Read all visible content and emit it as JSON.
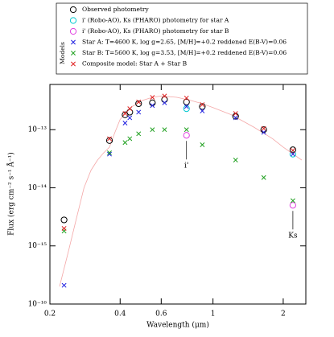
{
  "chart_data": {
    "type": "sed",
    "xlabel": "Wavelength (μm)",
    "ylabel": "Flux (erg cm⁻² s⁻¹ Å⁻¹)",
    "log_x": true,
    "log_y": true,
    "xlim": [
      0.2,
      2.5
    ],
    "ylim": [
      1e-16,
      6e-13
    ],
    "xticks": [
      0.2,
      0.4,
      0.6,
      1,
      2
    ],
    "yticks": [
      {
        "value": 1e-16,
        "label": "10⁻¹⁶"
      },
      {
        "value": 1e-15,
        "label": "10⁻¹⁵"
      },
      {
        "value": 1e-14,
        "label": "10⁻¹⁴"
      },
      {
        "value": 1e-13,
        "label": "10⁻¹³"
      }
    ],
    "x": [
      0.23,
      0.36,
      0.42,
      0.44,
      0.48,
      0.55,
      0.62,
      0.77,
      0.9,
      1.25,
      1.65,
      2.2
    ],
    "series": [
      {
        "name": "Observed photometry",
        "color": "#000000",
        "marker": "o",
        "values": [
          2.8e-15,
          6.5e-14,
          1.8e-13,
          2e-13,
          2.8e-13,
          2.9e-13,
          3.3e-13,
          3e-13,
          2.5e-13,
          1.7e-13,
          1e-13,
          4.5e-14
        ]
      },
      {
        "name": "i' (Robo-AO), Ks (PHARO) photometry for star A",
        "color": "#00c8d0",
        "marker": "o",
        "values": [
          null,
          null,
          null,
          null,
          null,
          null,
          null,
          2.3e-13,
          null,
          null,
          null,
          3.8e-14
        ]
      },
      {
        "name": "i' (Robo-AO), Ks (PHARO) photometry for star B",
        "color": "#e040e0",
        "marker": "o",
        "values": [
          null,
          null,
          null,
          null,
          null,
          null,
          null,
          8e-14,
          null,
          null,
          null,
          5e-15
        ]
      },
      {
        "name": "Star A: T=4600 K, log g=2.65, [M/H]=+0.2 reddened E(B-V)=0.06",
        "color": "#2020e0",
        "marker": "x",
        "values": [
          2.1e-16,
          3.8e-14,
          1.3e-13,
          1.6e-13,
          2e-13,
          2.6e-13,
          2.9e-13,
          2.5e-13,
          2.1e-13,
          1.6e-13,
          9e-14,
          3.8e-14
        ]
      },
      {
        "name": "Star B: T=5600 K, log g=3.53, [M/H]=+0.2 reddened E(B-V)=0.06",
        "color": "#20a020",
        "marker": "x",
        "values": [
          1.8e-15,
          4e-14,
          6e-14,
          7e-14,
          8.5e-14,
          1e-13,
          1e-13,
          1e-13,
          5.5e-14,
          3e-14,
          1.5e-14,
          6e-15
        ]
      },
      {
        "name": "Composite model: Star A + Star B",
        "color": "#e02020",
        "marker": "x",
        "values": [
          2e-15,
          7e-14,
          1.9e-13,
          2.3e-13,
          3e-13,
          3.6e-13,
          3.8e-13,
          3.5e-13,
          2.7e-13,
          1.9e-13,
          1.05e-13,
          4.4e-14
        ]
      }
    ],
    "legend_group": "Models",
    "spectrum": {
      "color": "#f4a8a8",
      "x": [
        0.22,
        0.24,
        0.26,
        0.28,
        0.3,
        0.32,
        0.34,
        0.36,
        0.38,
        0.4,
        0.45,
        0.5,
        0.55,
        0.6,
        0.7,
        0.8,
        0.9,
        1.0,
        1.2,
        1.5,
        1.8,
        2.0,
        2.4
      ],
      "values": [
        2e-16,
        8e-16,
        3e-15,
        1e-14,
        2e-14,
        3e-14,
        4e-14,
        5e-14,
        9e-14,
        1.5e-13,
        2.5e-13,
        3.2e-13,
        3.6e-13,
        3.8e-13,
        3.6e-13,
        3.2e-13,
        2.8e-13,
        2.4e-13,
        1.8e-13,
        1.1e-13,
        7e-14,
        5e-14,
        3e-14
      ]
    },
    "annotations": [
      {
        "text": "i'",
        "x": 0.77,
        "y": 8e-14
      },
      {
        "text": "Ks",
        "x": 2.2,
        "y": 5e-15
      }
    ]
  }
}
